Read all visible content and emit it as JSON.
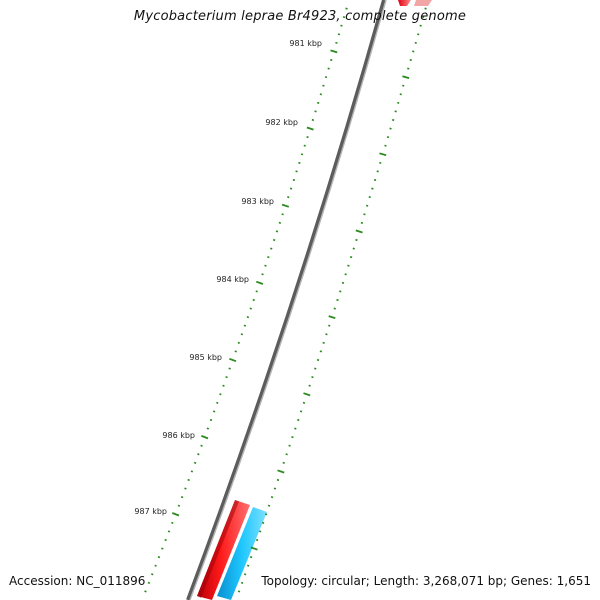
{
  "title": "Mycobacterium leprae Br4923, complete genome",
  "footer": {
    "accession": "Accession: NC_011896",
    "summary": "Topology: circular; Length: 3,268,071 bp; Genes: 1,651"
  },
  "ticks": {
    "labels": [
      "981 kbp",
      "982 kbp",
      "983 kbp",
      "984 kbp",
      "985 kbp",
      "986 kbp",
      "987 kbp"
    ],
    "color": "#2a8a1e"
  },
  "features": {
    "forward_strand_color": "#e8141e",
    "reverse_strand_color": "#19b6ef",
    "backbone_color": "#7a7a7a"
  }
}
